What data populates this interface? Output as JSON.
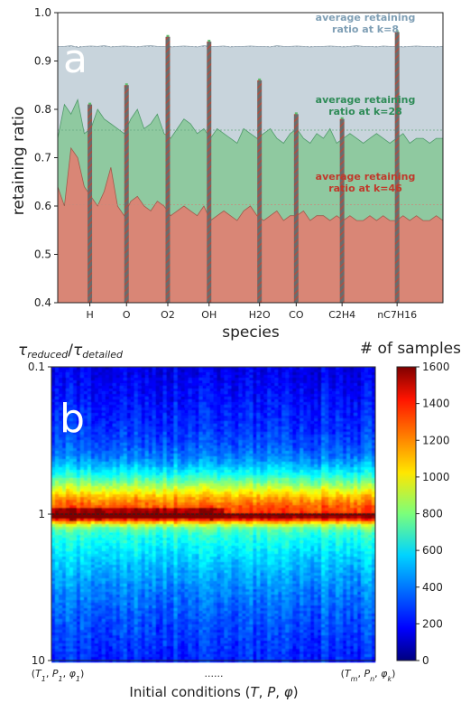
{
  "chart_data": [
    {
      "type": "area",
      "panel_label": "a",
      "xlabel": "species",
      "ylabel": "retaining ratio",
      "ylim": [
        0.4,
        1.0
      ],
      "yticks": [
        "0.4",
        "0.5",
        "0.6",
        "0.7",
        "0.8",
        "0.9",
        "1.0"
      ],
      "xtick_labels": [
        "H",
        "O",
        "O2",
        "OH",
        "H2O",
        "CO",
        "C2H4",
        "nC7H16"
      ],
      "grid": false,
      "colors": {
        "k8": "#c8d4dc",
        "k28": "#8fc9a0",
        "k46": "#d98676",
        "spike": "#555555"
      },
      "series": [
        {
          "key": "k8",
          "values": [
            0.93,
            0.93,
            0.932,
            0.928,
            0.93,
            0.931,
            0.93,
            0.932,
            0.929,
            0.93,
            0.931,
            0.93,
            0.929,
            0.931,
            0.932,
            0.93,
            0.93,
            0.929,
            0.93,
            0.931,
            0.93,
            0.929,
            0.932,
            0.93,
            0.93,
            0.931,
            0.929,
            0.93,
            0.93,
            0.931,
            0.93,
            0.93,
            0.929,
            0.932,
            0.93,
            0.93,
            0.931,
            0.93,
            0.929,
            0.93,
            0.93,
            0.931,
            0.93,
            0.929,
            0.93,
            0.932,
            0.93,
            0.93,
            0.929,
            0.931,
            0.93,
            0.93,
            0.929,
            0.93,
            0.931,
            0.93,
            0.93,
            0.929,
            0.93
          ]
        },
        {
          "key": "k28",
          "values": [
            0.74,
            0.81,
            0.79,
            0.82,
            0.75,
            0.76,
            0.8,
            0.78,
            0.77,
            0.76,
            0.75,
            0.78,
            0.8,
            0.76,
            0.77,
            0.79,
            0.75,
            0.74,
            0.76,
            0.78,
            0.77,
            0.75,
            0.76,
            0.74,
            0.76,
            0.75,
            0.74,
            0.73,
            0.76,
            0.75,
            0.74,
            0.75,
            0.76,
            0.74,
            0.73,
            0.75,
            0.76,
            0.74,
            0.73,
            0.75,
            0.74,
            0.76,
            0.73,
            0.74,
            0.75,
            0.74,
            0.73,
            0.74,
            0.75,
            0.74,
            0.73,
            0.74,
            0.75,
            0.73,
            0.74,
            0.74,
            0.73,
            0.74,
            0.74
          ]
        },
        {
          "key": "k46",
          "values": [
            0.64,
            0.6,
            0.72,
            0.7,
            0.64,
            0.62,
            0.6,
            0.63,
            0.68,
            0.6,
            0.58,
            0.61,
            0.62,
            0.6,
            0.59,
            0.61,
            0.6,
            0.58,
            0.59,
            0.6,
            0.59,
            0.58,
            0.6,
            0.57,
            0.58,
            0.59,
            0.58,
            0.57,
            0.59,
            0.6,
            0.58,
            0.57,
            0.58,
            0.59,
            0.57,
            0.58,
            0.58,
            0.59,
            0.57,
            0.58,
            0.58,
            0.57,
            0.58,
            0.57,
            0.58,
            0.57,
            0.57,
            0.58,
            0.57,
            0.58,
            0.57,
            0.57,
            0.58,
            0.57,
            0.58,
            0.57,
            0.57,
            0.58,
            0.57
          ]
        }
      ],
      "annotations": [
        {
          "text": [
            "average retaining",
            "ratio at k=8"
          ],
          "color": "#7f9fb5"
        },
        {
          "text": [
            "average retaining",
            "ratio at k=28"
          ],
          "color": "#2e8b57"
        },
        {
          "text": [
            "average retaining",
            "ratio at k=46"
          ],
          "color": "#c0392b"
        }
      ],
      "average_lines": [
        0.93,
        0.757,
        0.603
      ],
      "spikes": [
        {
          "label": "H",
          "index": 7,
          "value": 0.81
        },
        {
          "label": "O",
          "index": 15,
          "value": 0.85
        },
        {
          "label": "O2",
          "index": 24,
          "value": 0.95
        },
        {
          "label": "OH",
          "index": 33,
          "value": 0.94
        },
        {
          "label": "H2O",
          "index": 44,
          "value": 0.86
        },
        {
          "label": "CO",
          "index": 52,
          "value": 0.79
        },
        {
          "label": "C2H4",
          "index": 62,
          "value": 0.78
        },
        {
          "label": "nC7H16",
          "index": 74,
          "value": 0.96
        }
      ]
    },
    {
      "type": "heatmap",
      "panel_label": "b",
      "ylabel": "τreduced/τdetailed",
      "xlabel": "Initial conditions (T, P, φ)",
      "xtick_labels": [
        "(T1, P1, φ1)",
        "......",
        "(Tm, Pn, φk)"
      ],
      "ytick_labels": [
        "0.1",
        "1",
        "10"
      ],
      "y_scale": "log",
      "reference_line": 1,
      "colorbar": {
        "label": "# of samples",
        "range": [
          0,
          1600
        ],
        "ticks": [
          0,
          200,
          400,
          600,
          800,
          1000,
          1200,
          1400,
          1600
        ],
        "colormap": "jet"
      }
    }
  ]
}
